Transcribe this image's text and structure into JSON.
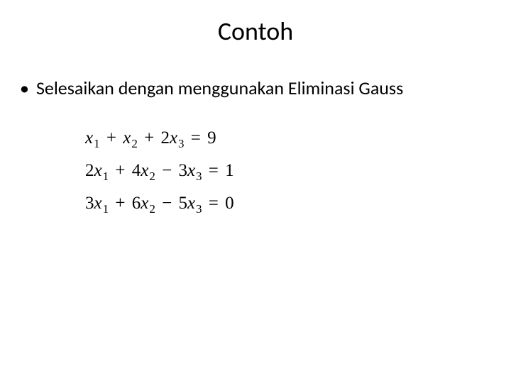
{
  "slide": {
    "title": "Contoh",
    "bullet_symbol": "•",
    "bullet_text": "Selesaikan dengan menggunakan Eliminasi Gauss",
    "title_fontsize": 36,
    "body_fontsize": 26,
    "eq_fontsize": 25,
    "background_color": "#ffffff",
    "text_color": "#000000"
  },
  "equations": {
    "type": "math-system",
    "font_family": "Times New Roman",
    "lines": [
      {
        "coeffs": [
          1,
          1,
          2
        ],
        "vars": [
          "x1",
          "x2",
          "x3"
        ],
        "ops": [
          "+",
          "+"
        ],
        "rhs": 9
      },
      {
        "coeffs": [
          2,
          4,
          -3
        ],
        "vars": [
          "x1",
          "x2",
          "x3"
        ],
        "ops": [
          "+",
          "-"
        ],
        "rhs": 1
      },
      {
        "coeffs": [
          3,
          6,
          -5
        ],
        "vars": [
          "x1",
          "x2",
          "x3"
        ],
        "ops": [
          "+",
          "-"
        ],
        "rhs": 0
      }
    ],
    "rendered": {
      "line1": {
        "c1": "",
        "v1": "x",
        "s1": "1",
        "op1": "+",
        "c2": "",
        "v2": "x",
        "s2": "2",
        "op2": "+",
        "c3": "2",
        "v3": "x",
        "s3": "3",
        "eq": "=",
        "rhs": "9"
      },
      "line2": {
        "c1": "2",
        "v1": "x",
        "s1": "1",
        "op1": "+",
        "c2": "4",
        "v2": "x",
        "s2": "2",
        "op2": "−",
        "c3": "3",
        "v3": "x",
        "s3": "3",
        "eq": "=",
        "rhs": "1"
      },
      "line3": {
        "c1": "3",
        "v1": "x",
        "s1": "1",
        "op1": "+",
        "c2": "6",
        "v2": "x",
        "s2": "2",
        "op2": "−",
        "c3": "5",
        "v3": "x",
        "s3": "3",
        "eq": "=",
        "rhs": "0"
      }
    }
  }
}
